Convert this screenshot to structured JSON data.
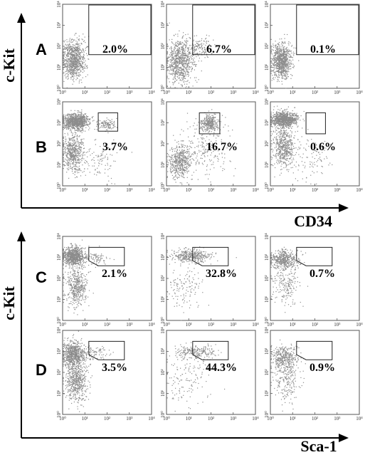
{
  "figure": {
    "group_top": {
      "y_axis_label": "c-Kit",
      "x_axis_label": "CD34",
      "rows": [
        {
          "label": "A",
          "percentages": [
            "2.0%",
            "6.7%",
            "0.1%"
          ]
        },
        {
          "label": "B",
          "percentages": [
            "3.7%",
            "16.7%",
            "0.6%"
          ]
        }
      ]
    },
    "group_bottom": {
      "y_axis_label": "c-Kit",
      "x_axis_label": "Sca-1",
      "rows": [
        {
          "label": "C",
          "percentages": [
            "2.1%",
            "32.8%",
            "0.7%"
          ]
        },
        {
          "label": "D",
          "percentages": [
            "3.5%",
            "44.3%",
            "0.9%"
          ]
        }
      ]
    }
  },
  "chart_data": {
    "type": "scatter",
    "scale": "log",
    "xlim": [
      1,
      10000
    ],
    "ylim": [
      1,
      10000
    ],
    "tick_values": [
      1,
      10,
      100,
      1000,
      10000
    ],
    "x_tick_labels": [
      "10⁰",
      "10¹",
      "10²",
      "10³",
      "10⁴"
    ],
    "y_tick_labels": [
      "10⁰",
      "10¹",
      "10²",
      "10³",
      "10⁴"
    ],
    "point_color": "#8c8c8c",
    "panels": [
      {
        "row": "A",
        "col": 0,
        "gate": "rect",
        "gate_x": [
          15,
          10000
        ],
        "gate_y": [
          40,
          10000
        ],
        "percent": "2.0%",
        "clusters": [
          {
            "cx": 3,
            "cy": 25,
            "sx": 0.25,
            "sy": 0.45,
            "n": 850
          }
        ]
      },
      {
        "row": "A",
        "col": 1,
        "gate": "rect",
        "gate_x": [
          15,
          10000
        ],
        "gate_y": [
          40,
          10000
        ],
        "percent": "6.7%",
        "clusters": [
          {
            "cx": 4,
            "cy": 20,
            "sx": 0.3,
            "sy": 0.55,
            "n": 800
          },
          {
            "cx": 30,
            "cy": 90,
            "sx": 0.25,
            "sy": 0.25,
            "n": 130
          }
        ]
      },
      {
        "row": "A",
        "col": 2,
        "gate": "rect",
        "gate_x": [
          15,
          10000
        ],
        "gate_y": [
          40,
          10000
        ],
        "percent": "0.1%",
        "clusters": [
          {
            "cx": 3,
            "cy": 22,
            "sx": 0.22,
            "sy": 0.42,
            "n": 850
          }
        ]
      },
      {
        "row": "B",
        "col": 0,
        "gate": "rect",
        "gate_x": [
          40,
          300
        ],
        "gate_y": [
          400,
          3000
        ],
        "percent": "3.7%",
        "clusters": [
          {
            "cx": 4,
            "cy": 1200,
            "sx": 0.3,
            "sy": 0.2,
            "n": 900
          },
          {
            "cx": 3,
            "cy": 40,
            "sx": 0.25,
            "sy": 0.5,
            "n": 550
          },
          {
            "cx": 90,
            "cy": 900,
            "sx": 0.2,
            "sy": 0.15,
            "n": 110
          },
          {
            "cx": 40,
            "cy": 20,
            "sx": 0.5,
            "sy": 0.5,
            "n": 100
          }
        ]
      },
      {
        "row": "B",
        "col": 1,
        "gate": "rect",
        "gate_x": [
          30,
          250
        ],
        "gate_y": [
          300,
          3000
        ],
        "percent": "16.7%",
        "clusters": [
          {
            "cx": 80,
            "cy": 1000,
            "sx": 0.2,
            "sy": 0.2,
            "n": 300
          },
          {
            "cx": 4,
            "cy": 15,
            "sx": 0.25,
            "sy": 0.4,
            "n": 500
          },
          {
            "cx": 60,
            "cy": 60,
            "sx": 0.6,
            "sy": 0.7,
            "n": 220
          }
        ]
      },
      {
        "row": "B",
        "col": 2,
        "gate": "rect",
        "gate_x": [
          40,
          300
        ],
        "gate_y": [
          300,
          3000
        ],
        "percent": "0.6%",
        "clusters": [
          {
            "cx": 4,
            "cy": 1500,
            "sx": 0.3,
            "sy": 0.18,
            "n": 900
          },
          {
            "cx": 4,
            "cy": 80,
            "sx": 0.25,
            "sy": 0.5,
            "n": 550
          },
          {
            "cx": 60,
            "cy": 20,
            "sx": 0.5,
            "sy": 0.5,
            "n": 100
          }
        ]
      },
      {
        "row": "C",
        "col": 0,
        "gate": "poly",
        "gate_pts": [
          [
            15,
            3000
          ],
          [
            15,
            700
          ],
          [
            40,
            400
          ],
          [
            600,
            400
          ],
          [
            600,
            3000
          ]
        ],
        "percent": "2.1%",
        "clusters": [
          {
            "cx": 3,
            "cy": 1200,
            "sx": 0.25,
            "sy": 0.22,
            "n": 800
          },
          {
            "cx": 4,
            "cy": 40,
            "sx": 0.25,
            "sy": 0.5,
            "n": 450
          },
          {
            "cx": 30,
            "cy": 1000,
            "sx": 0.3,
            "sy": 0.15,
            "n": 80
          }
        ]
      },
      {
        "row": "C",
        "col": 1,
        "gate": "poly",
        "gate_pts": [
          [
            15,
            3000
          ],
          [
            15,
            700
          ],
          [
            40,
            400
          ],
          [
            600,
            400
          ],
          [
            600,
            3000
          ]
        ],
        "percent": "32.8%",
        "clusters": [
          {
            "cx": 12,
            "cy": 1200,
            "sx": 0.45,
            "sy": 0.15,
            "n": 380
          },
          {
            "cx": 6,
            "cy": 40,
            "sx": 0.4,
            "sy": 0.5,
            "n": 130
          }
        ]
      },
      {
        "row": "C",
        "col": 2,
        "gate": "poly",
        "gate_pts": [
          [
            15,
            3000
          ],
          [
            15,
            700
          ],
          [
            40,
            400
          ],
          [
            600,
            400
          ],
          [
            600,
            3000
          ]
        ],
        "percent": "0.7%",
        "clusters": [
          {
            "cx": 4,
            "cy": 800,
            "sx": 0.3,
            "sy": 0.22,
            "n": 450
          },
          {
            "cx": 5,
            "cy": 60,
            "sx": 0.3,
            "sy": 0.5,
            "n": 200
          }
        ]
      },
      {
        "row": "D",
        "col": 0,
        "gate": "poly",
        "gate_pts": [
          [
            15,
            3000
          ],
          [
            15,
            700
          ],
          [
            40,
            400
          ],
          [
            600,
            400
          ],
          [
            600,
            3000
          ]
        ],
        "percent": "3.5%",
        "clusters": [
          {
            "cx": 3,
            "cy": 800,
            "sx": 0.25,
            "sy": 0.3,
            "n": 700
          },
          {
            "cx": 4,
            "cy": 40,
            "sx": 0.25,
            "sy": 0.5,
            "n": 550
          },
          {
            "cx": 30,
            "cy": 900,
            "sx": 0.3,
            "sy": 0.15,
            "n": 80
          }
        ]
      },
      {
        "row": "D",
        "col": 1,
        "gate": "poly",
        "gate_pts": [
          [
            15,
            3000
          ],
          [
            15,
            700
          ],
          [
            40,
            400
          ],
          [
            600,
            400
          ],
          [
            600,
            3000
          ]
        ],
        "percent": "44.3%",
        "clusters": [
          {
            "cx": 20,
            "cy": 1000,
            "sx": 0.45,
            "sy": 0.15,
            "n": 220
          },
          {
            "cx": 8,
            "cy": 50,
            "sx": 0.5,
            "sy": 0.6,
            "n": 140
          }
        ]
      },
      {
        "row": "D",
        "col": 2,
        "gate": "poly",
        "gate_pts": [
          [
            15,
            3000
          ],
          [
            15,
            700
          ],
          [
            40,
            400
          ],
          [
            600,
            400
          ],
          [
            600,
            3000
          ]
        ],
        "percent": "0.9%",
        "clusters": [
          {
            "cx": 4,
            "cy": 500,
            "sx": 0.3,
            "sy": 0.3,
            "n": 380
          },
          {
            "cx": 5,
            "cy": 40,
            "sx": 0.3,
            "sy": 0.5,
            "n": 200
          }
        ]
      }
    ]
  }
}
